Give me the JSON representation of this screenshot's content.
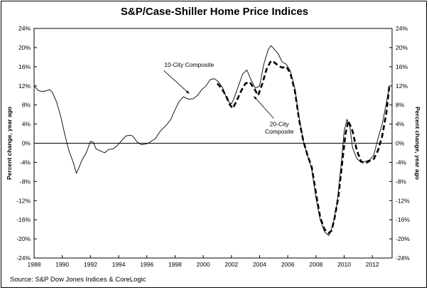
{
  "title": "S&P/Case-Shiller Home Price Indices",
  "source": "Source: S&P Dow Jones Indices & CoreLogic",
  "chart_data": {
    "type": "line",
    "title": "S&P/Case-Shiller Home Price Indices",
    "ylabel_left": "Percent change, year ago",
    "ylabel_right": "Percent change, year ago",
    "xlim": [
      1988,
      2013.4
    ],
    "ylim": [
      -24,
      24
    ],
    "x_ticks": [
      "1988",
      "1990",
      "1992",
      "1994",
      "1996",
      "1998",
      "2000",
      "2002",
      "2004",
      "2006",
      "2008",
      "2010",
      "2012"
    ],
    "y_ticks": [
      "24%",
      "20%",
      "16%",
      "12%",
      "8%",
      "4%",
      "0%",
      "-4%",
      "-8%",
      "-12%",
      "-16%",
      "-20%",
      "-24%"
    ],
    "grid": false,
    "series": [
      {
        "name": "10-City Composite",
        "style": "solid",
        "color": "#000000",
        "x": [
          1988.0,
          1988.3,
          1988.6,
          1988.9,
          1989.1,
          1989.3,
          1989.6,
          1989.9,
          1990.2,
          1990.5,
          1990.8,
          1991.0,
          1991.2,
          1991.4,
          1991.7,
          1992.0,
          1992.2,
          1992.4,
          1992.7,
          1993.0,
          1993.3,
          1993.6,
          1993.9,
          1994.2,
          1994.5,
          1994.8,
          1995.0,
          1995.3,
          1995.6,
          1995.9,
          1996.1,
          1996.4,
          1996.6,
          1996.9,
          1997.1,
          1997.4,
          1997.7,
          1998.0,
          1998.3,
          1998.6,
          1998.8,
          1999.0,
          1999.3,
          1999.6,
          1999.9,
          2000.2,
          2000.5,
          2000.8,
          2001.1,
          2001.4,
          2001.7,
          2002.0,
          2002.2,
          2002.5,
          2002.8,
          2003.1,
          2003.4,
          2003.7,
          2004.0,
          2004.3,
          2004.6,
          2004.8,
          2005.0,
          2005.3,
          2005.6,
          2005.9,
          2006.2,
          2006.5,
          2006.8,
          2007.1,
          2007.4,
          2007.7,
          2008.0,
          2008.3,
          2008.6,
          2008.9,
          2009.0,
          2009.2,
          2009.5,
          2009.8,
          2010.0,
          2010.2,
          2010.4,
          2010.6,
          2010.9,
          2011.2,
          2011.5,
          2011.8,
          2012.1,
          2012.4,
          2012.7,
          2013.0,
          2013.2
        ],
        "y": [
          12.0,
          11.0,
          10.8,
          11.0,
          11.2,
          10.6,
          8.6,
          5.5,
          1.5,
          -1.8,
          -4.2,
          -6.3,
          -5.0,
          -3.5,
          -2.0,
          0.4,
          0.2,
          -1.2,
          -1.6,
          -2.0,
          -1.3,
          -1.2,
          -0.5,
          0.5,
          1.5,
          1.7,
          1.5,
          0.3,
          -0.3,
          -0.2,
          0.0,
          0.6,
          0.9,
          2.3,
          3.0,
          3.8,
          5.0,
          7.0,
          8.8,
          9.7,
          9.4,
          9.2,
          9.3,
          10.0,
          11.2,
          12.0,
          13.3,
          13.5,
          12.8,
          11.5,
          9.0,
          8.2,
          9.5,
          12.0,
          14.5,
          15.3,
          13.2,
          11.5,
          12.0,
          16.5,
          19.5,
          20.4,
          19.8,
          18.8,
          17.0,
          16.5,
          15.0,
          11.5,
          5.5,
          0.5,
          -2.5,
          -5.5,
          -11.5,
          -16.0,
          -18.5,
          -19.3,
          -18.8,
          -17.0,
          -12.5,
          -4.0,
          2.5,
          5.0,
          3.5,
          -1.0,
          -3.2,
          -4.0,
          -3.8,
          -3.5,
          -2.5,
          1.0,
          4.0,
          8.5,
          12.0
        ]
      },
      {
        "name": "20-City Composite",
        "style": "dashed",
        "color": "#000000",
        "x": [
          2001.0,
          2001.3,
          2001.6,
          2001.9,
          2002.1,
          2002.4,
          2002.7,
          2003.0,
          2003.3,
          2003.6,
          2003.9,
          2004.2,
          2004.5,
          2004.8,
          2005.0,
          2005.3,
          2005.6,
          2005.9,
          2006.2,
          2006.5,
          2006.8,
          2007.1,
          2007.4,
          2007.7,
          2008.0,
          2008.3,
          2008.6,
          2008.9,
          2009.1,
          2009.3,
          2009.6,
          2009.9,
          2010.1,
          2010.3,
          2010.6,
          2010.9,
          2011.2,
          2011.5,
          2011.8,
          2012.1,
          2012.4,
          2012.7,
          2013.0,
          2013.2
        ],
        "y": [
          12.5,
          11.5,
          10.0,
          8.0,
          7.3,
          9.0,
          11.0,
          12.5,
          12.8,
          11.5,
          10.0,
          12.5,
          15.5,
          17.2,
          17.0,
          16.3,
          15.8,
          16.0,
          14.5,
          11.0,
          5.0,
          0.5,
          -2.5,
          -5.0,
          -10.5,
          -15.5,
          -18.0,
          -18.8,
          -18.3,
          -16.0,
          -11.0,
          -3.0,
          2.0,
          4.7,
          2.5,
          -1.5,
          -3.8,
          -4.2,
          -3.7,
          -3.3,
          -1.5,
          1.5,
          6.5,
          11.8
        ]
      }
    ],
    "annotations": [
      {
        "text": "10-City Composite",
        "x": 1999.0,
        "y": 16.0
      },
      {
        "text": "20-City",
        "x": 2005.4,
        "y": 3.6
      },
      {
        "text": "Composite",
        "x": 2005.4,
        "y": 2.0
      }
    ]
  }
}
